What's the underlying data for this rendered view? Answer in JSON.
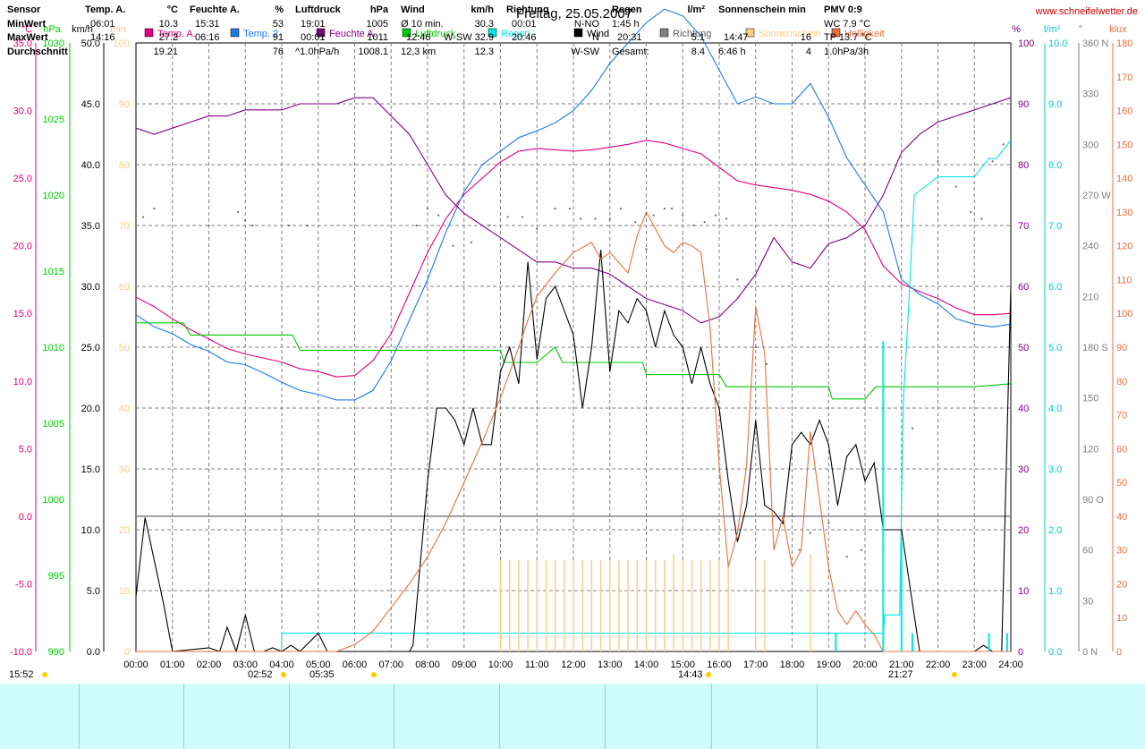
{
  "title": "Freitag, 25.05.2007",
  "website": "www.schneifelwetter.de",
  "units": {
    "temp": "°C",
    "pressure": "hPa",
    "wind": "km/h",
    "sun": "min",
    "humidity": "%",
    "rain": "l/m²",
    "direction": "°",
    "brightness": "klux"
  },
  "legend": [
    {
      "label": "Temp. A.",
      "color": "#e0007a"
    },
    {
      "label": "Temp. 2",
      "color": "#1e78e6"
    },
    {
      "label": "Feuchte A.",
      "color": "#800080"
    },
    {
      "label": "Luftdruck",
      "color": "#00cc00"
    },
    {
      "label": "Regen",
      "color": "#00e6e6"
    },
    {
      "label": "Wind",
      "color": "#000000"
    },
    {
      "label": "Richtung",
      "color": "#808080"
    },
    {
      "label": "Sonnenschein",
      "color": "#ffcc88"
    },
    {
      "label": "Helligkeit",
      "color": "#e87040"
    }
  ],
  "axes": {
    "temp": [
      "35.0",
      "30.0",
      "25.0",
      "20.0",
      "15.0",
      "10.0",
      "5.0",
      "0.0",
      "-5.0",
      "-10.0"
    ],
    "pressure": [
      "1030",
      "1025",
      "1020",
      "1015",
      "1010",
      "1005",
      "1000",
      "995",
      "990"
    ],
    "wind": [
      "50.0",
      "45.0",
      "40.0",
      "35.0",
      "30.0",
      "25.0",
      "20.0",
      "15.0",
      "10.0",
      "5.0",
      "0.0"
    ],
    "sun": [
      "100",
      "90",
      "80",
      "70",
      "60",
      "50",
      "40",
      "30",
      "20",
      "10",
      "0"
    ],
    "humidity": [
      "100",
      "90",
      "80",
      "70",
      "60",
      "50",
      "40",
      "30",
      "20",
      "10",
      "0"
    ],
    "rain": [
      "10.0",
      "9.0",
      "8.0",
      "7.0",
      "6.0",
      "5.0",
      "4.0",
      "3.0",
      "2.0",
      "1.0",
      "0.0"
    ],
    "direction": [
      "360 N",
      "330",
      "300",
      "270 W",
      "240",
      "210",
      "180 S",
      "150",
      "120",
      "90 O",
      "60",
      "30",
      "0 N"
    ],
    "brightness": [
      "180",
      "170",
      "160",
      "150",
      "140",
      "130",
      "120",
      "110",
      "100",
      "90",
      "80",
      "70",
      "60",
      "50",
      "40",
      "30",
      "20",
      "10",
      "0"
    ],
    "time": [
      "00:00",
      "01:00",
      "02:00",
      "03:00",
      "04:00",
      "05:00",
      "06:00",
      "07:00",
      "08:00",
      "09:00",
      "10:00",
      "11:00",
      "12:00",
      "13:00",
      "14:00",
      "15:00",
      "16:00",
      "17:00",
      "18:00",
      "19:00",
      "20:00",
      "21:00",
      "22:00",
      "23:00",
      "24:00"
    ]
  },
  "time_markers": {
    "left_time": "15:52",
    "sunrise_min_temp": "02:52",
    "sunrise": "05:35",
    "max_temp": "14:43",
    "sunset": "21:27"
  },
  "chart_data": {
    "type": "line",
    "title": "Freitag, 25.05.2007",
    "x_unit": "hours",
    "series": [
      {
        "name": "Temp. A.",
        "unit": "°C",
        "axis": "temp",
        "ylim": [
          -10,
          35
        ],
        "x": [
          0,
          0.5,
          1,
          1.5,
          2,
          2.5,
          3,
          3.5,
          4,
          4.5,
          5,
          5.5,
          6,
          6.5,
          7,
          7.5,
          8,
          8.5,
          9,
          9.5,
          10,
          10.5,
          11,
          11.5,
          12,
          12.5,
          13,
          13.5,
          14,
          14.5,
          15,
          15.5,
          16,
          16.5,
          17,
          17.5,
          18,
          18.5,
          19,
          19.5,
          20,
          20.5,
          21,
          21.5,
          22,
          22.5,
          23,
          23.5,
          24
        ],
        "y": [
          16.2,
          15.5,
          14.6,
          13.8,
          13.1,
          12.4,
          12.0,
          11.7,
          11.4,
          10.9,
          10.7,
          10.3,
          10.4,
          11.5,
          13.5,
          16.5,
          19.5,
          22,
          23.8,
          25,
          26.2,
          27,
          27.2,
          27.1,
          27,
          27.1,
          27.3,
          27.5,
          27.8,
          27.6,
          27.2,
          26.8,
          25.8,
          24.8,
          24.5,
          24.3,
          24.1,
          23.8,
          23.3,
          22.5,
          21.2,
          18.5,
          17.2,
          16.6,
          16.1,
          15.4,
          14.9,
          14.9,
          15.0
        ]
      },
      {
        "name": "Temp. 2",
        "unit": "°C",
        "axis": "temp",
        "ylim": [
          -10,
          35
        ],
        "x": [
          0,
          0.5,
          1,
          1.5,
          2,
          2.5,
          3,
          3.5,
          4,
          4.5,
          5,
          5.5,
          6,
          6.5,
          7,
          7.5,
          8,
          8.5,
          9,
          9.5,
          10,
          10.5,
          11,
          11.5,
          12,
          12.5,
          13,
          13.5,
          14,
          14.5,
          15,
          15.5,
          16,
          16.5,
          17,
          17.5,
          18,
          18.5,
          19,
          19.5,
          20,
          20.5,
          21,
          21.5,
          22,
          22.5,
          23,
          23.5,
          24
        ],
        "y": [
          14.9,
          14.0,
          13.5,
          12.7,
          12.2,
          11.4,
          11.2,
          10.6,
          9.9,
          9.3,
          9.0,
          8.6,
          8.6,
          9.3,
          11.5,
          14.5,
          17.5,
          21,
          24,
          26,
          27,
          28,
          28.5,
          29.1,
          30,
          31.5,
          33.5,
          35,
          36.5,
          37.5,
          37,
          35.5,
          33,
          30.5,
          31,
          30.5,
          30.5,
          32,
          29.5,
          26.5,
          24.5,
          22.5,
          17.5,
          16.4,
          15.7,
          14.6,
          14.2,
          14.0,
          14.2
        ]
      },
      {
        "name": "Feuchte A.",
        "unit": "%",
        "axis": "humidity",
        "ylim": [
          0,
          100
        ],
        "x": [
          0,
          0.5,
          1,
          1.5,
          2,
          2.5,
          3,
          3.5,
          4,
          4.5,
          5,
          5.5,
          6,
          6.5,
          7,
          7.5,
          8,
          8.5,
          9,
          9.5,
          10,
          10.5,
          11,
          11.5,
          12,
          12.5,
          13,
          13.5,
          14,
          14.5,
          15,
          15.5,
          16,
          16.5,
          17,
          17.5,
          18,
          18.5,
          19,
          19.5,
          20,
          20.5,
          21,
          21.5,
          22,
          22.5,
          23,
          23.5,
          24
        ],
        "y": [
          86,
          85,
          86,
          87,
          88,
          88,
          89,
          89,
          89,
          90,
          90,
          90,
          91,
          91,
          88,
          85,
          80,
          75,
          72,
          70,
          68,
          66,
          64,
          64,
          63,
          63,
          62,
          60,
          58,
          57,
          56,
          54,
          55,
          58,
          62,
          68,
          64,
          63,
          67,
          68,
          70,
          75,
          82,
          85,
          87,
          88,
          89,
          90,
          91
        ]
      },
      {
        "name": "Luftdruck",
        "unit": "hPa",
        "axis": "pressure",
        "ylim": [
          990,
          1030
        ],
        "x": [
          0,
          1.3,
          1.5,
          3,
          4.3,
          4.5,
          6,
          7,
          8,
          9,
          10,
          10.1,
          10.4,
          11,
          11.5,
          11.7,
          12,
          13,
          13.9,
          14,
          15,
          16,
          16.2,
          17,
          17.5,
          18,
          19,
          19.1,
          19.5,
          20,
          20.3,
          21,
          22,
          23,
          24
        ],
        "y": [
          1011.6,
          1011.6,
          1010.8,
          1010.8,
          1010.8,
          1009.8,
          1009.8,
          1009.8,
          1009.8,
          1009.8,
          1009.8,
          1009.0,
          1009.0,
          1009.0,
          1010,
          1009.0,
          1009.0,
          1009.0,
          1009.0,
          1008.2,
          1008.2,
          1008.2,
          1007.4,
          1007.4,
          1007.4,
          1007.4,
          1007.4,
          1006.6,
          1006.6,
          1006.6,
          1007.4,
          1007.4,
          1007.4,
          1007.4,
          1007.6
        ]
      },
      {
        "name": "Regen",
        "unit": "l/m²",
        "axis": "rain",
        "ylim": [
          0,
          10
        ],
        "x": [
          0,
          3.99,
          4,
          4.2,
          20.4,
          20.5,
          20.55,
          20.7,
          20.95,
          21.05,
          21.2,
          21.35,
          22,
          22.6,
          23,
          23.4,
          23.6,
          24
        ],
        "y": [
          0,
          0,
          0.3,
          0.3,
          0.3,
          0.3,
          0.6,
          0.6,
          0.6,
          4.1,
          5.7,
          7.5,
          7.8,
          7.8,
          7.8,
          8.1,
          8.1,
          8.4
        ]
      },
      {
        "name": "Wind",
        "unit": "km/h",
        "axis": "wind",
        "ylim": [
          0,
          50
        ],
        "x": [
          0,
          0.25,
          0.75,
          1,
          2,
          2.3,
          2.5,
          2.75,
          3,
          3.25,
          3.5,
          3.75,
          4,
          4.25,
          4.5,
          5,
          5.25,
          5.5,
          6,
          6.5,
          7,
          7.5,
          7.6,
          8,
          8.25,
          8.5,
          8.75,
          9,
          9.25,
          9.5,
          9.75,
          10,
          10.25,
          10.5,
          10.75,
          11,
          11.25,
          11.5,
          11.75,
          12,
          12.25,
          12.5,
          12.75,
          13,
          13.25,
          13.5,
          13.75,
          14,
          14.25,
          14.5,
          14.75,
          15,
          15.25,
          15.5,
          15.75,
          16,
          16.25,
          16.5,
          16.75,
          17,
          17.25,
          17.5,
          17.75,
          18,
          18.25,
          18.5,
          18.75,
          19,
          19.25,
          19.5,
          19.75,
          20,
          20.25,
          20.5,
          20.75,
          21,
          21.25,
          21.5,
          22,
          22.5,
          23,
          23.25,
          23.5,
          23.75,
          24
        ],
        "y": [
          4.5,
          11,
          4,
          0,
          0.3,
          0,
          2,
          0,
          3,
          0,
          0,
          0.3,
          0,
          0.5,
          0,
          1.5,
          0,
          0,
          0,
          0,
          0,
          0,
          0.5,
          14,
          20,
          20,
          19,
          17,
          20,
          17,
          17,
          23,
          25,
          22,
          32,
          24,
          29,
          30,
          28,
          26,
          20,
          25,
          33,
          23,
          28,
          27,
          29,
          28,
          25,
          28,
          26,
          25,
          22,
          25,
          22,
          20,
          14,
          9,
          12,
          19,
          12,
          11.5,
          10.5,
          17,
          18,
          17,
          19,
          17,
          12,
          16,
          17,
          14,
          15.5,
          10,
          10,
          10,
          5,
          0,
          0,
          0,
          0,
          0.5,
          0,
          0,
          30
        ]
      },
      {
        "name": "Richtung",
        "unit": "°",
        "axis": "direction",
        "ylim": [
          0,
          360
        ],
        "x": [
          0.2,
          0.5,
          2,
          2.8,
          3,
          3.2,
          4.2,
          4.7,
          7.7,
          8,
          8.3,
          8.7,
          9.2,
          9.7,
          10.2,
          10.6,
          11,
          11.5,
          11.9,
          12.2,
          12.6,
          13,
          13.3,
          13.7,
          14,
          14.2,
          14.5,
          14.7,
          15,
          15.3,
          15.6,
          15.9,
          16.2,
          16.5,
          17,
          17.3,
          17.5,
          18,
          18.2,
          18.5,
          19,
          19.5,
          19.9,
          20.5,
          21,
          21.3,
          22,
          22.5,
          22.9,
          23.2,
          23.5,
          23.8,
          24
        ],
        "y": [
          257,
          262,
          252,
          260,
          255,
          252,
          252,
          252,
          252,
          262,
          258,
          240,
          242,
          252,
          257,
          257,
          250,
          262,
          262,
          256,
          256,
          256,
          262,
          254,
          238,
          258,
          262,
          262,
          258,
          252,
          254,
          258,
          256,
          220,
          180,
          170,
          80,
          80,
          60,
          70,
          76,
          56,
          60,
          60,
          50,
          132,
          290,
          275,
          260,
          256,
          290,
          300,
          270
        ]
      },
      {
        "name": "Sonnenschein",
        "unit": "min",
        "axis": "sun",
        "ylim": [
          0,
          100
        ],
        "x": [
          10,
          10.25,
          10.5,
          10.75,
          11,
          11.25,
          11.5,
          11.75,
          12,
          12.25,
          12.5,
          12.75,
          13,
          13.25,
          13.5,
          13.75,
          14,
          14.25,
          14.5,
          14.75,
          15,
          15.25,
          15.5,
          15.75,
          16,
          16.25,
          17,
          17.25,
          18.5
        ],
        "y": [
          15,
          15,
          15,
          15,
          15,
          15,
          15,
          15,
          15,
          15,
          15,
          15,
          15,
          15,
          15,
          15,
          15,
          15,
          15,
          16,
          15,
          15,
          15,
          15,
          15,
          15,
          15,
          15,
          16
        ]
      },
      {
        "name": "Helligkeit",
        "unit": "klux",
        "axis": "brightness",
        "ylim": [
          0,
          180
        ],
        "x": [
          0,
          5.5,
          6,
          6.5,
          7,
          7.5,
          8,
          8.5,
          9,
          9.5,
          10,
          10.5,
          10.75,
          11,
          11.5,
          12,
          12.5,
          12.75,
          13,
          13.5,
          13.75,
          14,
          14.25,
          14.5,
          14.75,
          15,
          15.25,
          15.5,
          15.75,
          16,
          16.25,
          16.5,
          16.75,
          17,
          17.25,
          17.5,
          17.75,
          18,
          18.25,
          18.5,
          18.75,
          19,
          19.25,
          19.5,
          19.75,
          20,
          20.25,
          20.5,
          21,
          24
        ],
        "y": [
          0,
          0,
          2,
          6,
          13,
          20,
          28,
          38,
          50,
          62,
          75,
          90,
          98,
          105,
          112,
          118,
          121,
          116,
          118,
          112,
          123,
          130,
          125,
          120,
          118,
          121,
          120,
          118,
          96,
          55,
          25,
          35,
          55,
          102,
          88,
          30,
          40,
          25,
          30,
          65,
          45,
          25,
          12,
          8,
          12,
          8,
          5,
          0,
          0,
          0
        ]
      }
    ]
  },
  "footer": {
    "rows": [
      "Sensor",
      "MinWert",
      "MaxWert",
      "Durchschnitt"
    ],
    "temp": {
      "header": "Temp. A.",
      "unit": "°C",
      "min_time": "06:01",
      "min": "10.3",
      "max_time": "14:16",
      "max": "27.2",
      "avg": "19.21"
    },
    "humidity": {
      "header": "Feuchte A.",
      "unit": "%",
      "min_time": "15:31",
      "min": "53",
      "max_time": "06:16",
      "max": "91",
      "avg": "76"
    },
    "pressure": {
      "header": "Luftdruck",
      "unit": "hPa",
      "min_time": "19:01",
      "min": "1005",
      "max_time": "00:01",
      "max": "1011",
      "trend_label": "^1.0hPa/h",
      "avg": "1008.1"
    },
    "wind": {
      "header": "Wind",
      "unit": "km/h",
      "avg_label": "Ø 10 min.",
      "avg_val": "30.3",
      "max_time": "12:46",
      "max_dir": "W-SW",
      "max": "32.9",
      "dist": "12,3 km",
      "dist_val": "12.3"
    },
    "direction": {
      "header": "Richtung",
      "min_time": "00:01",
      "min": "N-NO",
      "max_time": "20:46",
      "max": "N",
      "avg": "W-SW"
    },
    "rain": {
      "header": "Regen",
      "unit": "l/m²",
      "duration": "1:45 h",
      "max_time": "20:31",
      "max": "5.1",
      "total_label": "Gesamt:",
      "total": "8.4"
    },
    "sun": {
      "header": "Sonnenschein min",
      "max_time": "14:47",
      "max": "16",
      "total": "6:46 h",
      "total_val": "4"
    },
    "pmv": {
      "header": "PMV 0:9",
      "wc": "WC 7.9 °C",
      "tp": "TP 13.7 °C",
      "trend": "1.0hPa/3h"
    }
  }
}
